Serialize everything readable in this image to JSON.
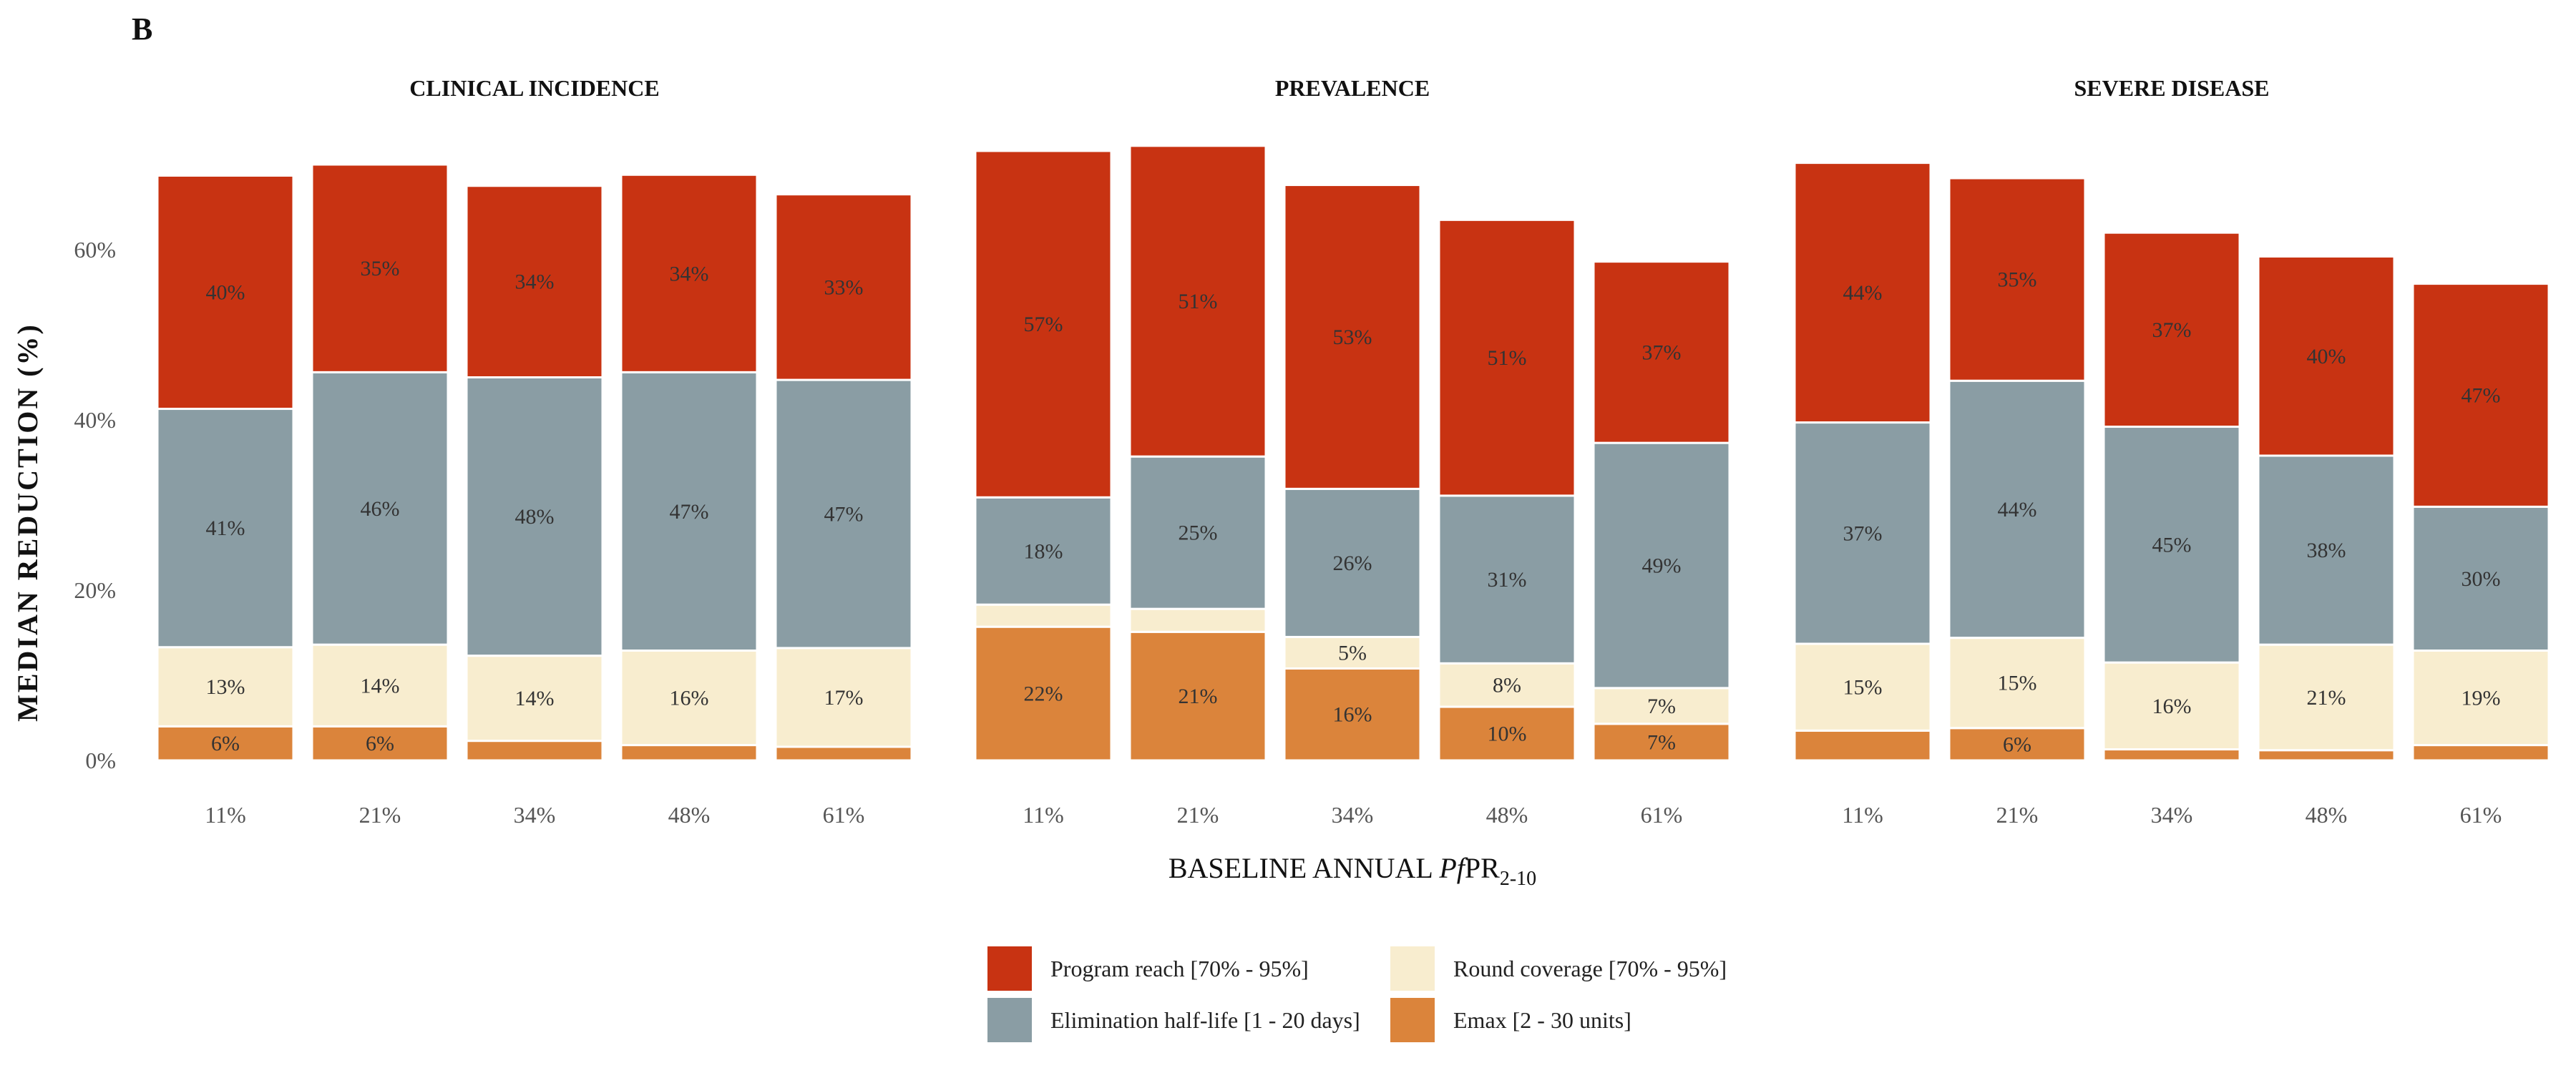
{
  "figure_label": "B",
  "colors": {
    "program_reach": "#C83312",
    "elimination_half_life": "#8A9DA4",
    "round_coverage": "#F8EDCF",
    "emax": "#DB843B"
  },
  "chart_data": {
    "type": "bar",
    "stacked": true,
    "ylabel": "MEDIAN REDUCTION (%)",
    "xlabel": {
      "main": "BASELINE ANNUAL ",
      "italic": "Pf",
      "roman": "PR",
      "sub": "2-10"
    },
    "ylim": [
      0,
      75
    ],
    "yticks": [
      {
        "value": 0,
        "label": "0%"
      },
      {
        "value": 20,
        "label": "20%"
      },
      {
        "value": 40,
        "label": "40%"
      },
      {
        "value": 60,
        "label": "60%"
      }
    ],
    "categories": [
      "11%",
      "21%",
      "34%",
      "48%",
      "61%"
    ],
    "legend": [
      {
        "key": "program_reach",
        "label": "Program reach [70% - 95%]"
      },
      {
        "key": "round_coverage",
        "label": "Round coverage [70% - 95%]"
      },
      {
        "key": "elimination_half_life",
        "label": "Elimination half-life [1 - 20 days]"
      },
      {
        "key": "emax",
        "label": "Emax [2 - 30 units]"
      }
    ],
    "panels": [
      {
        "title": "CLINICAL INCIDENCE",
        "totals": [
          68.7,
          70.0,
          67.5,
          68.8,
          66.5
        ],
        "series": {
          "emax": [
            4.0,
            4.0,
            2.3,
            1.8,
            1.6
          ],
          "round_coverage": [
            9.3,
            9.6,
            10.0,
            11.1,
            11.6
          ],
          "elimination_half_life": [
            28.0,
            32.0,
            32.7,
            32.7,
            31.5
          ],
          "program_reach": [
            27.4,
            24.4,
            22.5,
            23.2,
            21.8
          ]
        },
        "labels": {
          "emax": [
            "6%",
            "6%",
            "",
            "",
            ""
          ],
          "round_coverage": [
            "13%",
            "14%",
            "14%",
            "16%",
            "17%"
          ],
          "elimination_half_life": [
            "41%",
            "46%",
            "48%",
            "47%",
            "47%"
          ],
          "program_reach": [
            "40%",
            "35%",
            "34%",
            "34%",
            "33%"
          ]
        }
      },
      {
        "title": "PREVALENCE",
        "totals": [
          71.6,
          72.2,
          67.6,
          63.5,
          58.6
        ],
        "series": {
          "emax": [
            15.7,
            15.1,
            10.8,
            6.3,
            4.3
          ],
          "round_coverage": [
            2.6,
            2.7,
            3.7,
            5.1,
            4.2
          ],
          "elimination_half_life": [
            12.6,
            17.9,
            17.4,
            19.7,
            28.8
          ],
          "program_reach": [
            40.7,
            36.5,
            35.7,
            32.4,
            21.3
          ]
        },
        "labels": {
          "emax": [
            "22%",
            "21%",
            "16%",
            "10%",
            "7%"
          ],
          "round_coverage": [
            "",
            "",
            "5%",
            "8%",
            "7%"
          ],
          "elimination_half_life": [
            "18%",
            "25%",
            "26%",
            "31%",
            "49%"
          ],
          "program_reach": [
            "57%",
            "51%",
            "53%",
            "51%",
            "37%"
          ]
        }
      },
      {
        "title": "SEVERE DISEASE",
        "totals": [
          70.2,
          68.4,
          62.0,
          59.2,
          56.0
        ],
        "series": {
          "emax": [
            3.5,
            3.8,
            1.3,
            1.2,
            1.8
          ],
          "round_coverage": [
            10.2,
            10.6,
            10.2,
            12.4,
            11.1
          ],
          "elimination_half_life": [
            26.0,
            30.2,
            27.7,
            22.2,
            16.9
          ],
          "program_reach": [
            30.5,
            23.8,
            22.8,
            23.4,
            26.2
          ]
        },
        "labels": {
          "emax": [
            "",
            "6%",
            "",
            "",
            ""
          ],
          "round_coverage": [
            "15%",
            "15%",
            "16%",
            "21%",
            "19%"
          ],
          "elimination_half_life": [
            "37%",
            "44%",
            "45%",
            "38%",
            "30%"
          ],
          "program_reach": [
            "44%",
            "35%",
            "37%",
            "40%",
            "47%"
          ]
        }
      }
    ]
  }
}
